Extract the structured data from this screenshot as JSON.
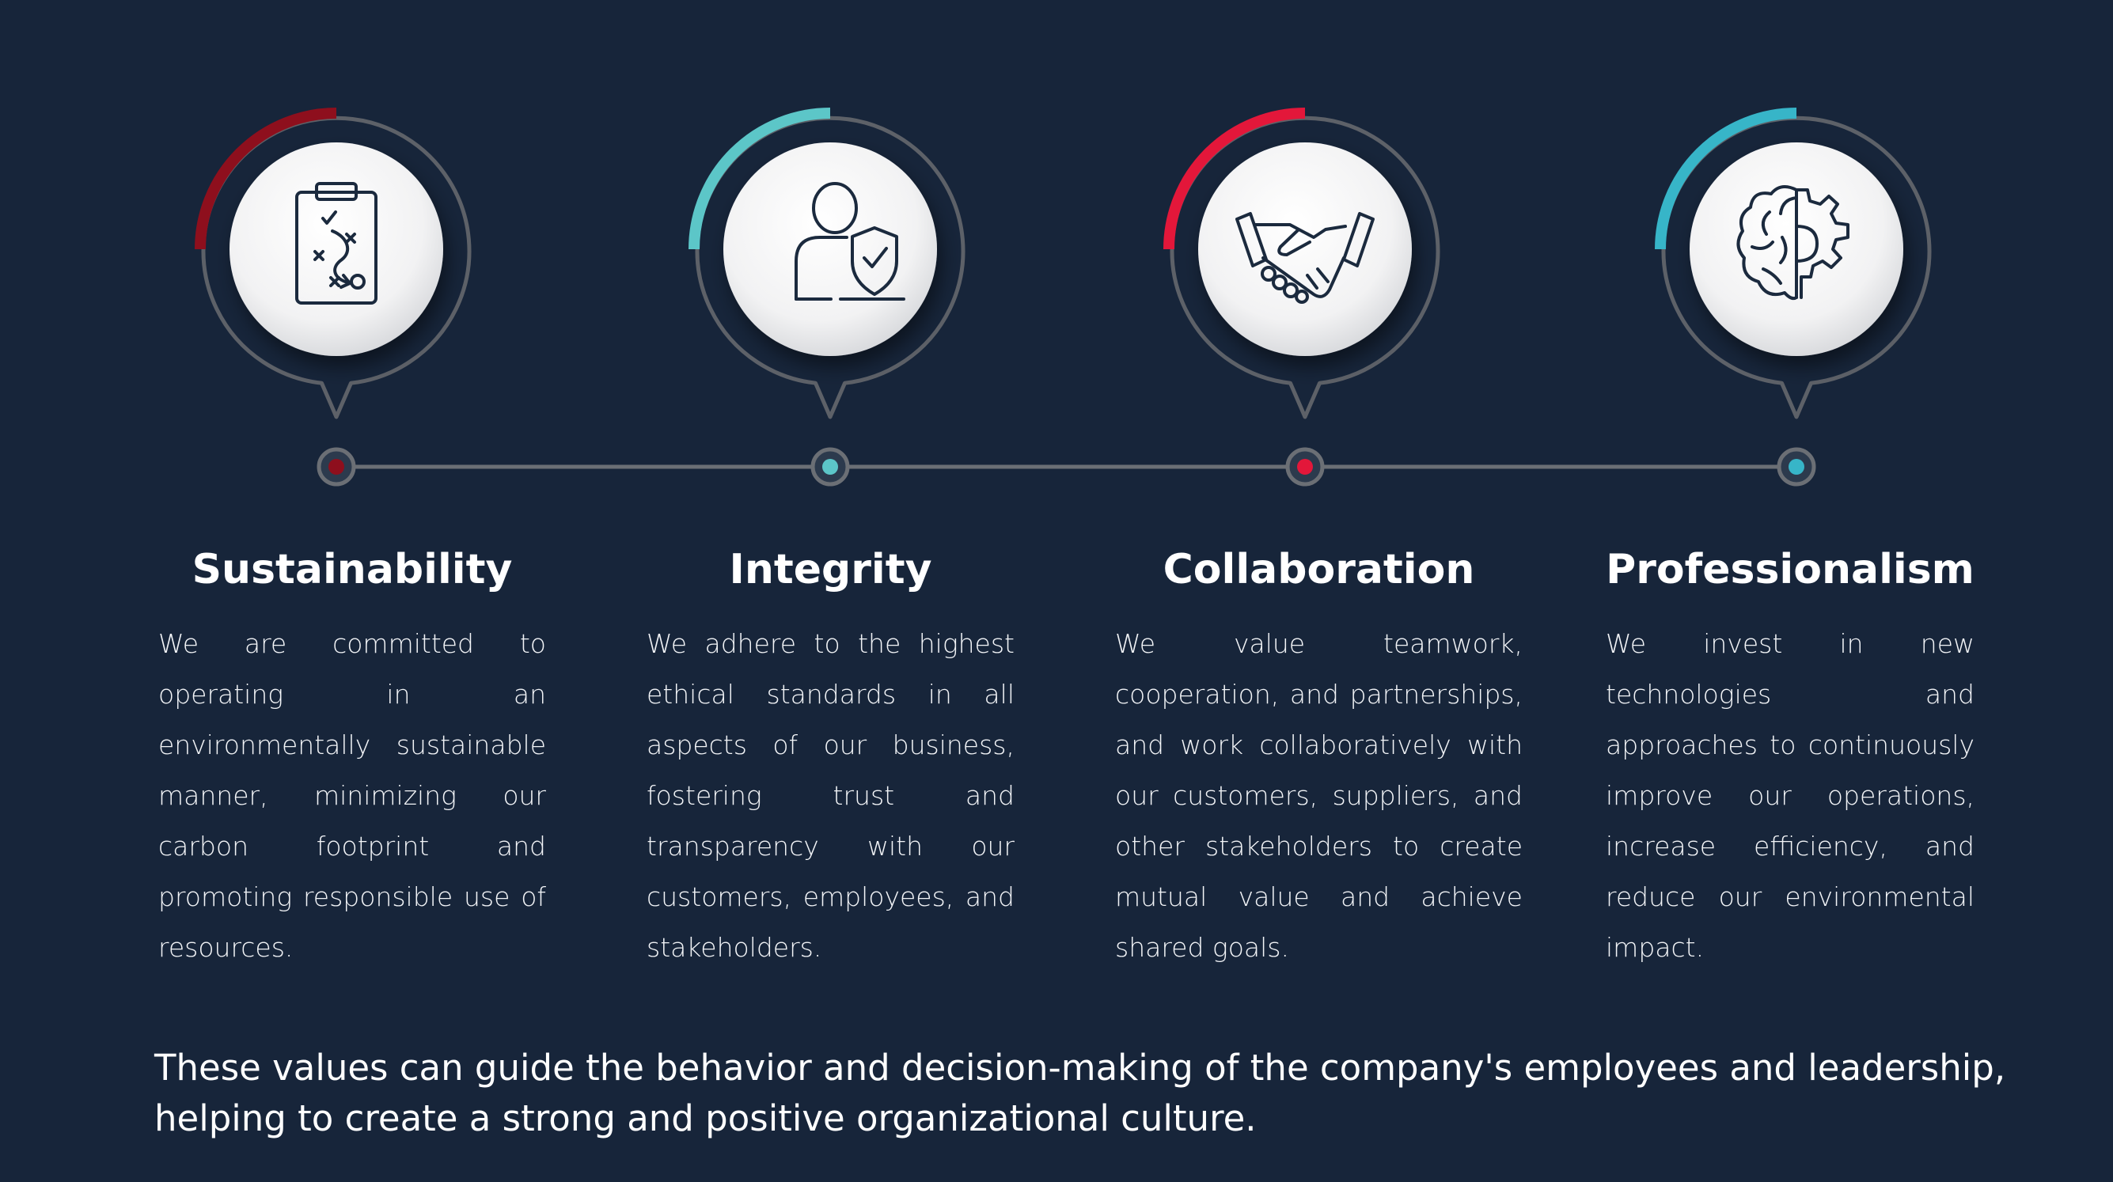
{
  "accent_colors": [
    "#8e0f1d",
    "#5cc6c8",
    "#e3173a",
    "#37b5c8"
  ],
  "values": [
    {
      "title": "Sustainability",
      "icon": "strategy-clipboard-icon",
      "text": "We are committed to operating in an environmentally sustainable manner, minimizing our carbon footprint and promoting responsible use of resources."
    },
    {
      "title": "Integrity",
      "icon": "user-shield-icon",
      "text": "We adhere to the highest ethical standards in all aspects of our business, fostering trust and transparency with our customers, employees, and stakeholders."
    },
    {
      "title": "Collaboration",
      "icon": "handshake-icon",
      "text": "We value teamwork, cooperation, and partnerships, and work collaboratively with our customers, suppliers, and other stakeholders to create mutual value and achieve shared goals."
    },
    {
      "title": "Professionalism",
      "icon": "brain-gear-icon",
      "text": "We invest in new technologies and approaches to continuously improve our operations, increase efficiency, and reduce our environmental impact."
    }
  ],
  "footer": "These values can guide the behavior and decision-making of the company's employees and leadership, helping to create a strong and positive organizational culture."
}
